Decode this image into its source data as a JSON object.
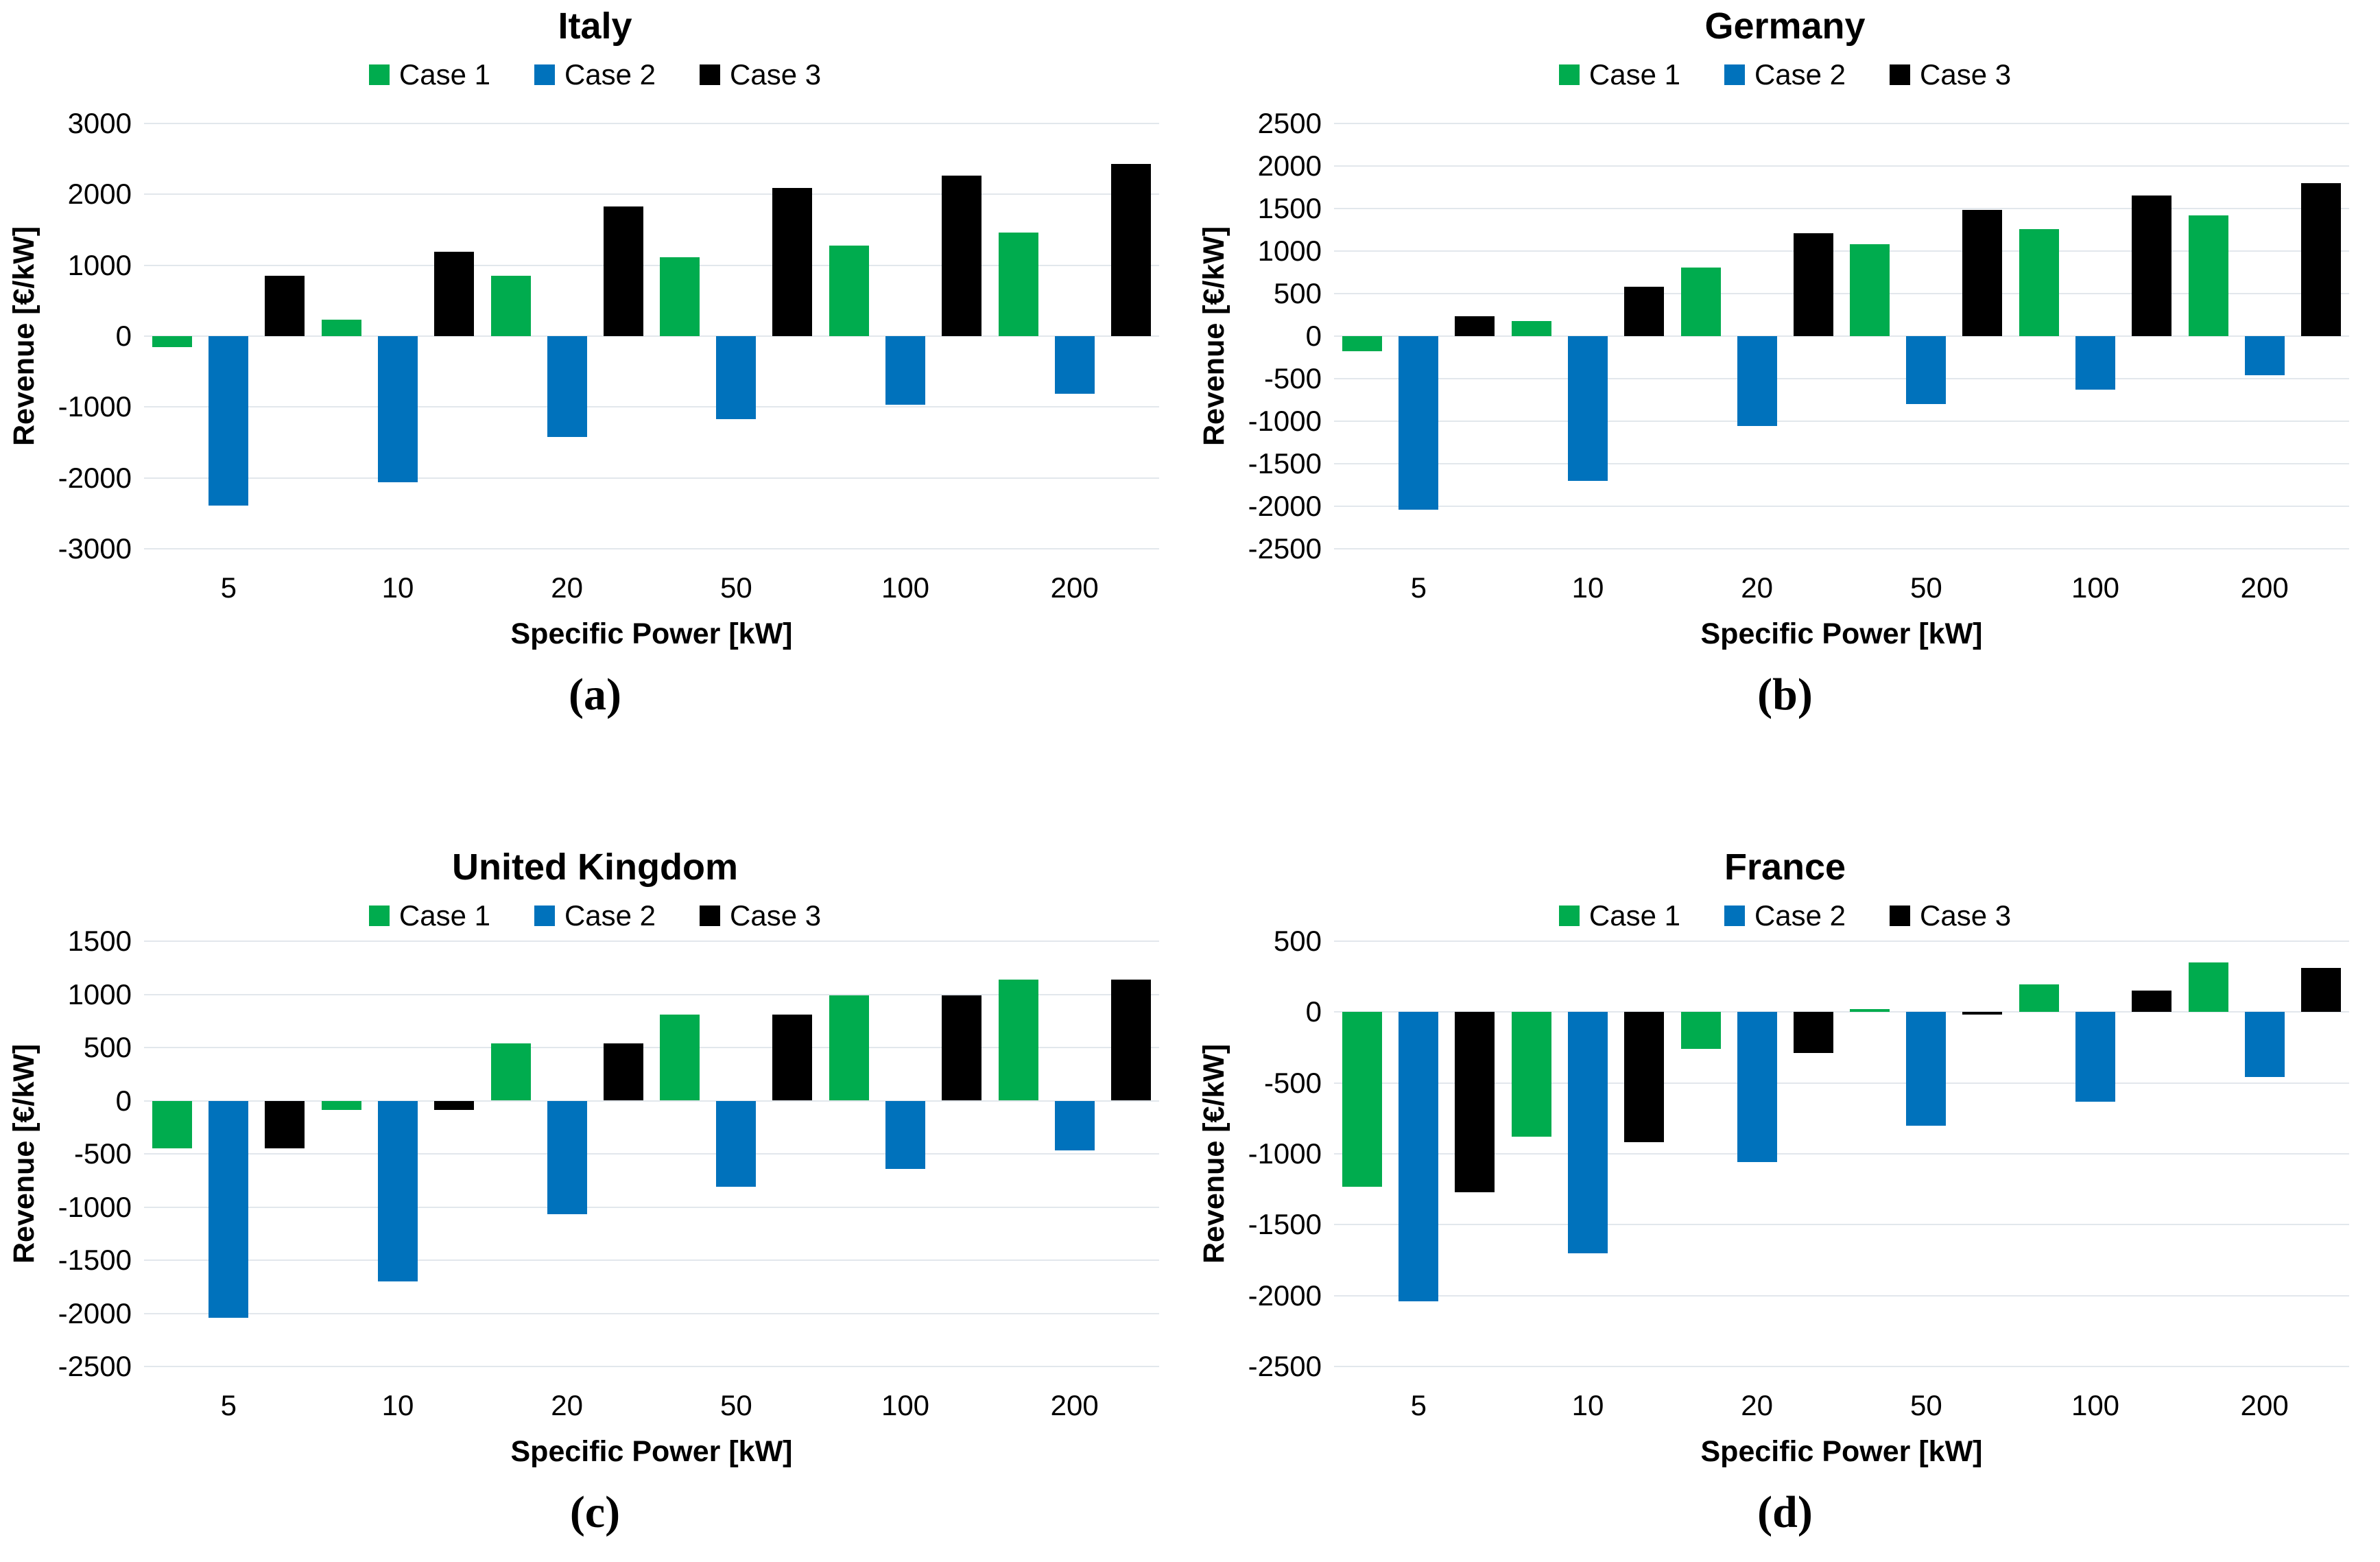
{
  "chart_data": [
    {
      "id": "italy",
      "type": "bar",
      "title": "Italy",
      "panel_label": "(a)",
      "xlabel": "Specific Power [kW]",
      "ylabel": "Revenue [€/kW]",
      "legend_position": "top",
      "grid": true,
      "categories": [
        "5",
        "10",
        "20",
        "50",
        "100",
        "200"
      ],
      "ylim": [
        -3000,
        3000
      ],
      "yticks": [
        3000,
        2000,
        1000,
        0,
        -1000,
        -2000,
        -3000
      ],
      "series": [
        {
          "name": "Case 1",
          "color": "#00AC4E",
          "values": [
            -150,
            230,
            850,
            1110,
            1280,
            1460
          ]
        },
        {
          "name": "Case 2",
          "color": "#0072BC",
          "values": [
            -2390,
            -2060,
            -1420,
            -1170,
            -970,
            -810
          ]
        },
        {
          "name": "Case 3",
          "color": "#000000",
          "values": [
            850,
            1190,
            1830,
            2090,
            2260,
            2430
          ]
        }
      ]
    },
    {
      "id": "germany",
      "type": "bar",
      "title": "Germany",
      "panel_label": "(b)",
      "xlabel": "Specific Power [kW]",
      "ylabel": "Revenue [€/kW]",
      "legend_position": "top",
      "grid": true,
      "categories": [
        "5",
        "10",
        "20",
        "50",
        "100",
        "200"
      ],
      "ylim": [
        -2500,
        2500
      ],
      "yticks": [
        2500,
        2000,
        1500,
        1000,
        500,
        0,
        -500,
        -1000,
        -1500,
        -2000,
        -2500
      ],
      "series": [
        {
          "name": "Case 1",
          "color": "#00AC4E",
          "values": [
            -180,
            180,
            810,
            1080,
            1260,
            1420
          ]
        },
        {
          "name": "Case 2",
          "color": "#0072BC",
          "values": [
            -2040,
            -1700,
            -1060,
            -800,
            -630,
            -460
          ]
        },
        {
          "name": "Case 3",
          "color": "#000000",
          "values": [
            230,
            580,
            1210,
            1480,
            1650,
            1800
          ]
        }
      ]
    },
    {
      "id": "united-kingdom",
      "type": "bar",
      "title": "United Kingdom",
      "panel_label": "(c)",
      "xlabel": "Specific Power [kW]",
      "ylabel": "Revenue [€/kW]",
      "legend_position": "top",
      "grid": true,
      "categories": [
        "5",
        "10",
        "20",
        "50",
        "100",
        "200"
      ],
      "ylim": [
        -2500,
        1500
      ],
      "yticks": [
        1500,
        1000,
        500,
        0,
        -500,
        -1000,
        -1500,
        -2000,
        -2500
      ],
      "series": [
        {
          "name": "Case 1",
          "color": "#00AC4E",
          "values": [
            -450,
            -90,
            540,
            810,
            990,
            1140
          ]
        },
        {
          "name": "Case 2",
          "color": "#0072BC",
          "values": [
            -2040,
            -1700,
            -1070,
            -810,
            -640,
            -470
          ]
        },
        {
          "name": "Case 3",
          "color": "#000000",
          "values": [
            -450,
            -90,
            540,
            810,
            990,
            1140
          ]
        }
      ]
    },
    {
      "id": "france",
      "type": "bar",
      "title": "France",
      "panel_label": "(d)",
      "xlabel": "Specific Power [kW]",
      "ylabel": "Revenue [€/kW]",
      "legend_position": "top",
      "grid": true,
      "categories": [
        "5",
        "10",
        "20",
        "50",
        "100",
        "200"
      ],
      "ylim": [
        -2500,
        500
      ],
      "yticks": [
        500,
        0,
        -500,
        -1000,
        -1500,
        -2000,
        -2500
      ],
      "series": [
        {
          "name": "Case 1",
          "color": "#00AC4E",
          "values": [
            -1230,
            -880,
            -260,
            20,
            195,
            350
          ]
        },
        {
          "name": "Case 2",
          "color": "#0072BC",
          "values": [
            -2040,
            -1700,
            -1060,
            -800,
            -630,
            -460
          ]
        },
        {
          "name": "Case 3",
          "color": "#000000",
          "values": [
            -1270,
            -920,
            -290,
            -20,
            150,
            310
          ]
        }
      ]
    }
  ]
}
